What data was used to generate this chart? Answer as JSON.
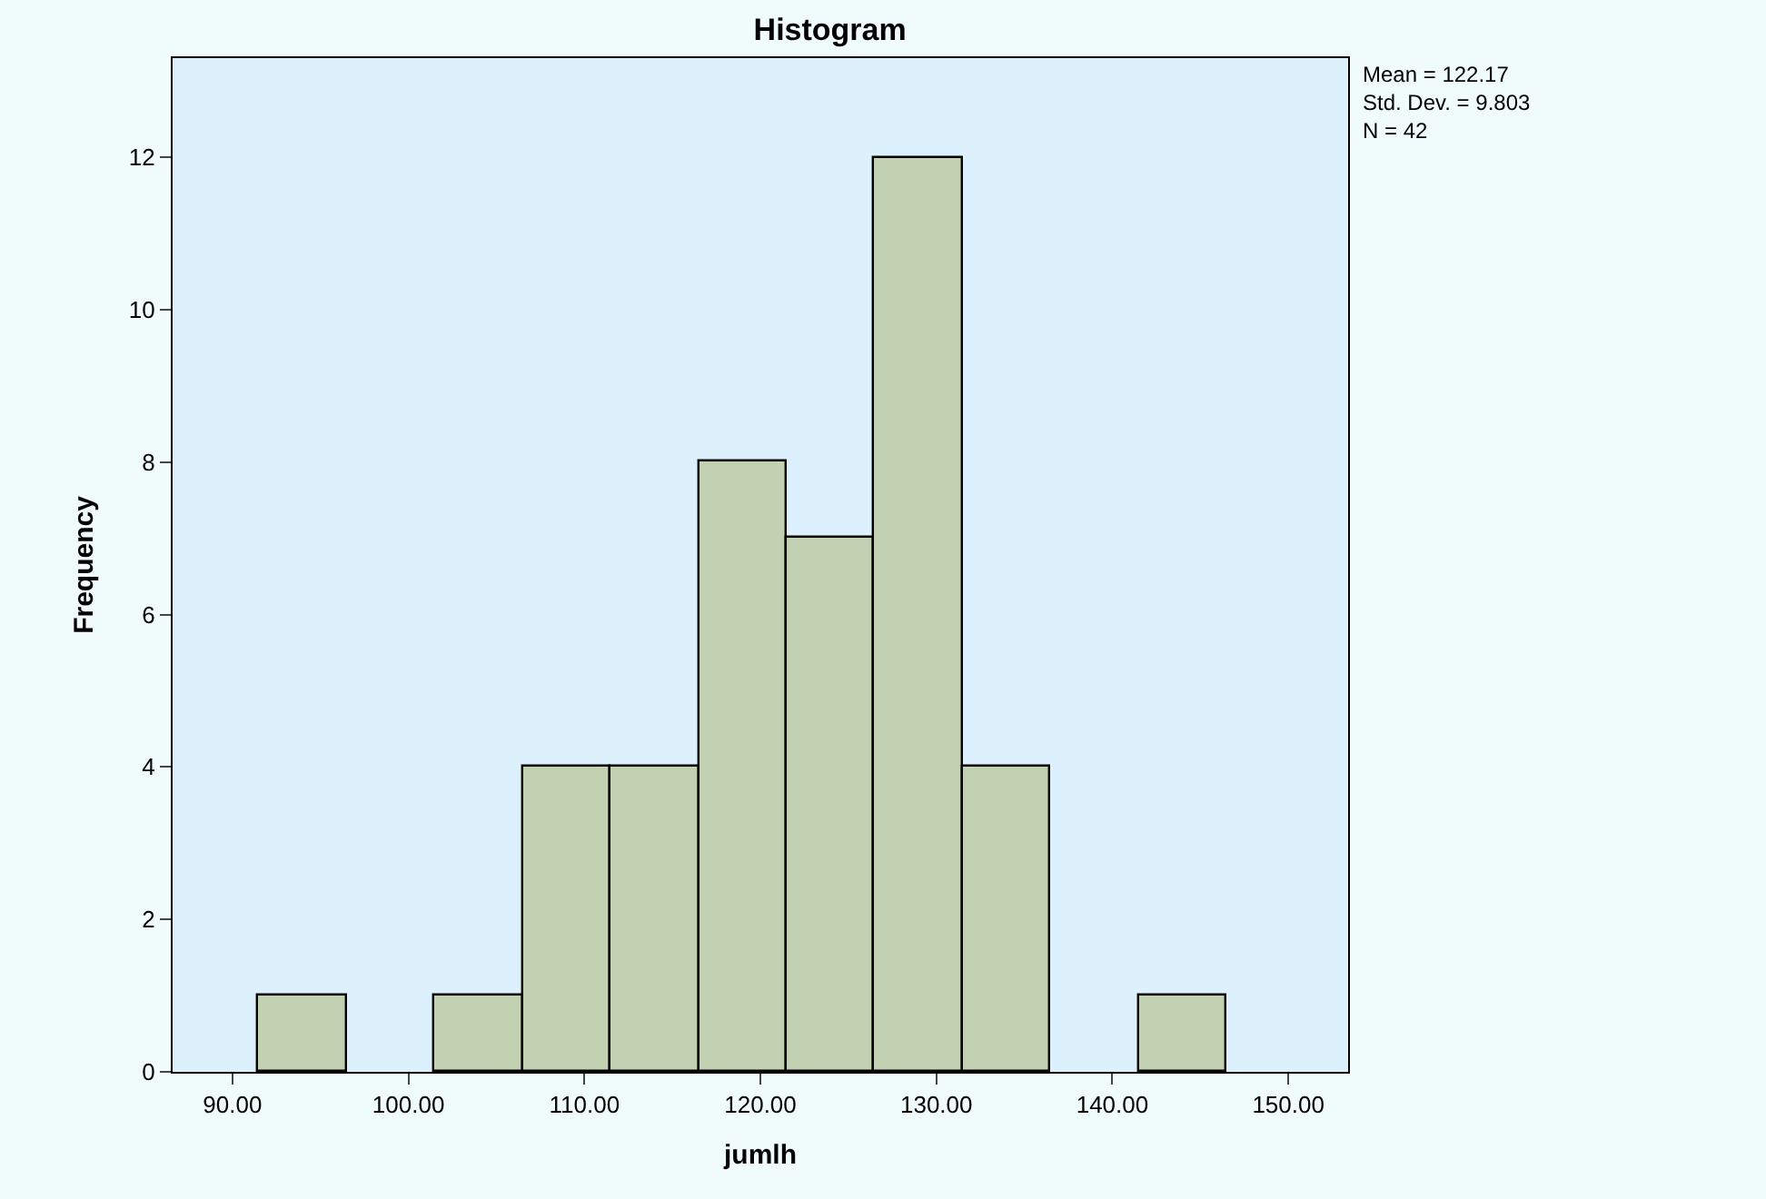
{
  "chart_data": {
    "type": "histogram",
    "title": "Histogram",
    "xlabel": "jumlh",
    "ylabel": "Frequency",
    "bins": [
      91.5,
      96.5,
      101.5,
      106.5,
      111.5,
      116.5,
      121.5,
      126.5,
      131.5,
      136.5,
      141.5,
      146.5
    ],
    "values": [
      1,
      0,
      1,
      4,
      4,
      8,
      7,
      12,
      4,
      0,
      1
    ],
    "color": "#c2d1b1",
    "xlim": [
      86.6,
      153.4
    ],
    "xticks": [
      {
        "value": 90,
        "label": "90.00"
      },
      {
        "value": 100,
        "label": "100.00"
      },
      {
        "value": 110,
        "label": "110.00"
      },
      {
        "value": 120,
        "label": "120.00"
      },
      {
        "value": 130,
        "label": "130.00"
      },
      {
        "value": 140,
        "label": "140.00"
      },
      {
        "value": 150,
        "label": "150.00"
      }
    ],
    "ylim": [
      0,
      13.3
    ],
    "yticks": [
      0,
      2,
      4,
      6,
      8,
      10,
      12
    ],
    "grid": false,
    "annotations": [
      "Mean = 122.17\nStd. Dev. = 9.803\nN = 42"
    ]
  }
}
